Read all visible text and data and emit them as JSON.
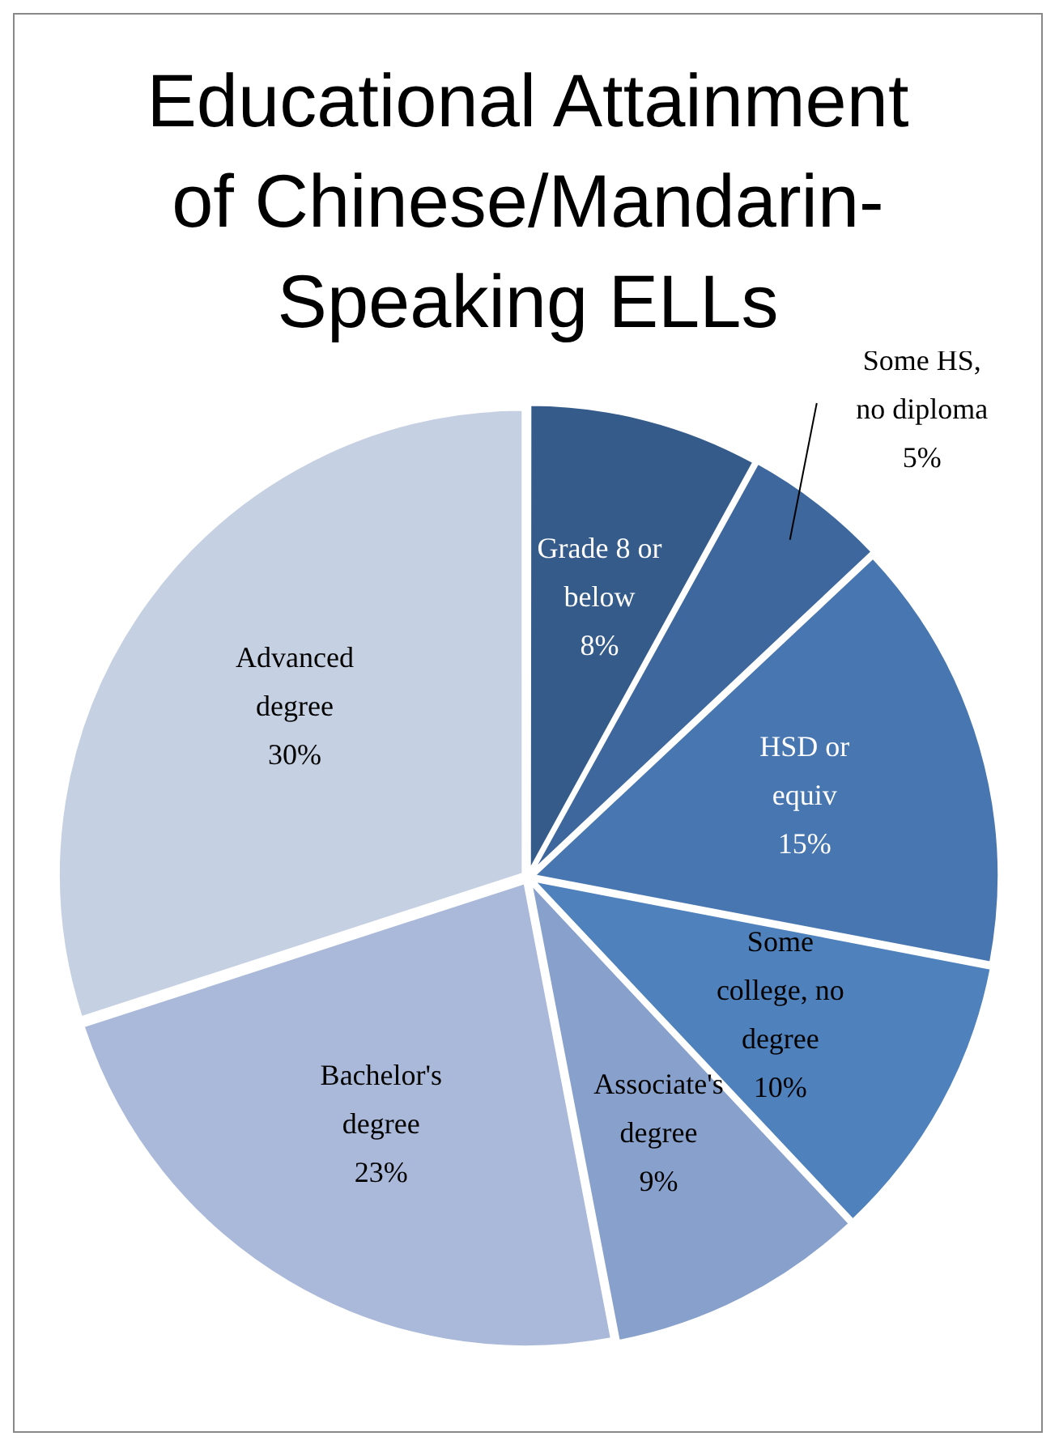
{
  "chart_data": {
    "type": "pie",
    "title": "Educational Attainment of Chinese/Mandarin-Speaking ELLs",
    "categories": [
      "Grade 8 or below",
      "Some HS, no diploma",
      "HSD or equiv",
      "Some college, no degree",
      "Associate's degree",
      "Bachelor's degree",
      "Advanced degree"
    ],
    "values": [
      8,
      5,
      15,
      10,
      9,
      23,
      30
    ],
    "colors": [
      "#355b8a",
      "#3d679d",
      "#4776b0",
      "#4f81bd",
      "#87a0cc",
      "#aab9d9",
      "#c6d0e3"
    ],
    "value_labels": [
      "8%",
      "5%",
      "15%",
      "10%",
      "9%",
      "23%",
      "30%"
    ],
    "legend": false
  }
}
